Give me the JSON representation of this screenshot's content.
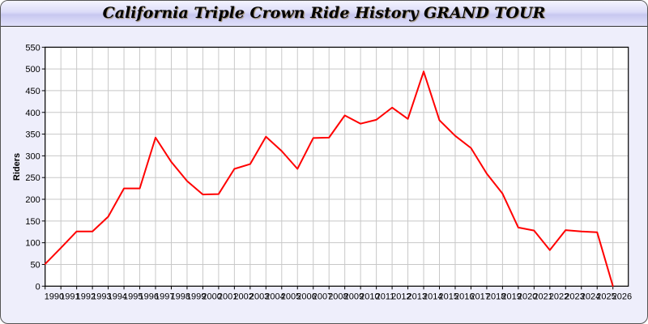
{
  "chart_data": {
    "type": "line",
    "title": "California Triple Crown Ride History GRAND TOUR",
    "xlabel": "",
    "ylabel": "Riders",
    "ylim": [
      0,
      550
    ],
    "yticks": [
      0,
      50,
      100,
      150,
      200,
      250,
      300,
      350,
      400,
      450,
      500,
      550
    ],
    "grid": true,
    "line_color": "#ff0000",
    "x": [
      1990,
      1991,
      1992,
      1993,
      1994,
      1995,
      1996,
      1997,
      1998,
      1999,
      2000,
      2001,
      2002,
      2003,
      2004,
      2005,
      2006,
      2007,
      2008,
      2009,
      2010,
      2011,
      2012,
      2013,
      2014,
      2015,
      2016,
      2017,
      2018,
      2019,
      2020,
      2021,
      2022,
      2023,
      2024,
      2025,
      2026
    ],
    "series": [
      {
        "values": [
          51,
          88,
          126,
          126,
          160,
          225,
          225,
          342,
          286,
          242,
          211,
          212,
          270,
          281,
          344,
          311,
          270,
          341,
          342,
          393,
          374,
          383,
          411,
          385,
          494,
          382,
          346,
          318,
          259,
          213,
          135,
          128,
          83,
          129,
          126,
          124,
          0
        ]
      }
    ]
  }
}
